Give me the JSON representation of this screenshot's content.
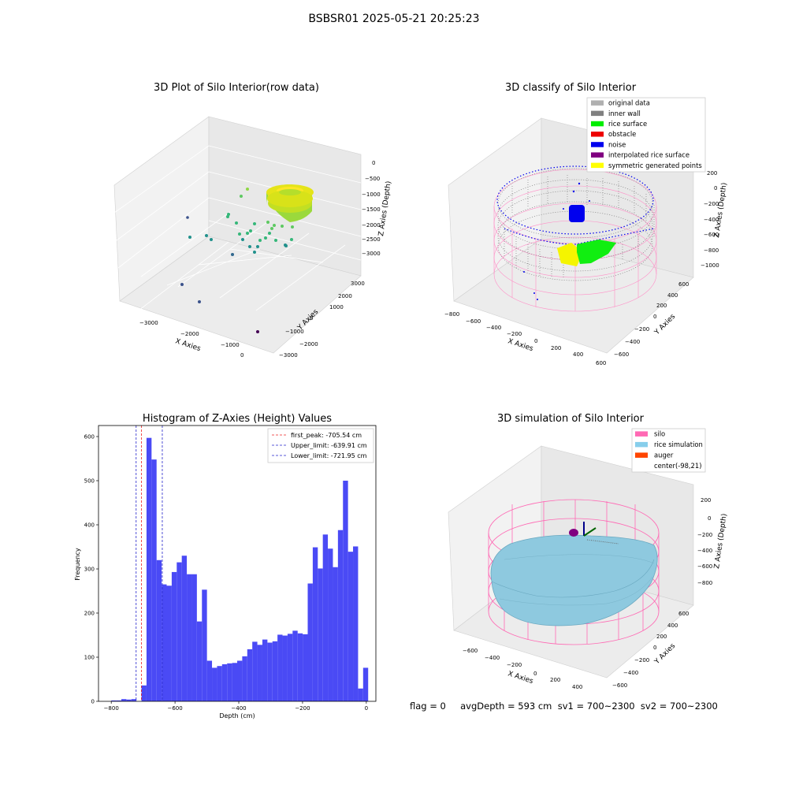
{
  "suptitle": "BSBSR01 2025-05-21 20:25:23",
  "chart_data": [
    {
      "type": "scatter",
      "title": "3D Plot of Silo Interior(row data)",
      "xlabel": "X Axies",
      "ylabel": "Y Axies",
      "zlabel": "Z Axies (Depth)",
      "x_ticks": [
        "−3000",
        "−2000",
        "−1000",
        "0"
      ],
      "y_ticks": [
        "−3000",
        "−2000",
        "−1000",
        "0",
        "1000",
        "2000",
        "3000"
      ],
      "z_ticks": [
        "0",
        "−500",
        "−1000",
        "−1500",
        "−2000",
        "−2500",
        "−3000"
      ],
      "colormap": "viridis"
    },
    {
      "type": "scatter",
      "title": "3D classify of Silo Interior",
      "xlabel": "X Axies",
      "ylabel": "Y Axies",
      "zlabel": "Z Axies (Depth)",
      "x_ticks": [
        "−800",
        "−600",
        "−400",
        "−200",
        "0",
        "200",
        "400",
        "600"
      ],
      "y_ticks": [
        "−600",
        "−400",
        "−200",
        "0",
        "200",
        "400",
        "600"
      ],
      "z_ticks": [
        "200",
        "0",
        "−200",
        "−400",
        "−600",
        "−800",
        "−1000"
      ],
      "legend": [
        {
          "label": "original data",
          "color": "#b0b0b0"
        },
        {
          "label": "inner wall",
          "color": "#808080"
        },
        {
          "label": "rice surface",
          "color": "#00ee00"
        },
        {
          "label": "obstacle",
          "color": "#ee0000"
        },
        {
          "label": "noise",
          "color": "#0000ee"
        },
        {
          "label": "interpolated rice surface",
          "color": "#800080"
        },
        {
          "label": "symmetric generated points",
          "color": "#ffff00"
        }
      ]
    },
    {
      "type": "bar",
      "title": "Histogram of Z-Axies (Height) Values",
      "xlabel": "Depth (cm)",
      "ylabel": "Frequency",
      "xlim": [
        -840,
        30
      ],
      "ylim": [
        0,
        625
      ],
      "x_ticks": [
        -800,
        -600,
        -400,
        -200,
        0
      ],
      "y_ticks": [
        0,
        100,
        200,
        300,
        400,
        500,
        600
      ],
      "bin_start": -800,
      "bin_width": 15.8,
      "values": [
        2,
        2,
        5,
        4,
        5,
        0,
        36,
        597,
        548,
        320,
        265,
        262,
        293,
        315,
        330,
        288,
        288,
        181,
        253,
        92,
        76,
        80,
        84,
        86,
        87,
        92,
        102,
        118,
        135,
        128,
        140,
        133,
        136,
        151,
        149,
        153,
        160,
        154,
        152,
        267,
        349,
        301,
        378,
        346,
        304,
        388,
        500,
        339,
        351,
        29,
        76
      ],
      "bar_color": "#4a4af5",
      "vlines": [
        {
          "label": "first_peak: -705.54 cm",
          "x": -705.54,
          "color": "#ee2222"
        },
        {
          "label": "Upper_limit: -639.91 cm",
          "x": -639.91,
          "color": "#2222cc"
        },
        {
          "label": "Lower_limit: -721.95 cm",
          "x": -721.95,
          "color": "#2222cc"
        }
      ],
      "legend_position": "top-right"
    },
    {
      "type": "surface",
      "title": "3D simulation of Silo Interior",
      "xlabel": "X Axies",
      "ylabel": "Y Axies",
      "zlabel": "Z Axies (Depth)",
      "x_ticks": [
        "−600",
        "−400",
        "−200",
        "0",
        "200",
        "400"
      ],
      "y_ticks": [
        "−600",
        "−400",
        "−200",
        "0",
        "200",
        "400",
        "600"
      ],
      "z_ticks": [
        "200",
        "0",
        "−200",
        "−400",
        "−600",
        "−800"
      ],
      "legend": [
        {
          "label": "silo",
          "color": "#ff69b4"
        },
        {
          "label": "rice simulation",
          "color": "#87ceeb"
        },
        {
          "label": "auger",
          "color": "#ff4500"
        },
        {
          "label": "center(-98,21)",
          "color": ""
        }
      ]
    }
  ],
  "footer": "flag = 0     avgDepth = 593 cm  sv1 = 700~2300  sv2 = 700~2300"
}
